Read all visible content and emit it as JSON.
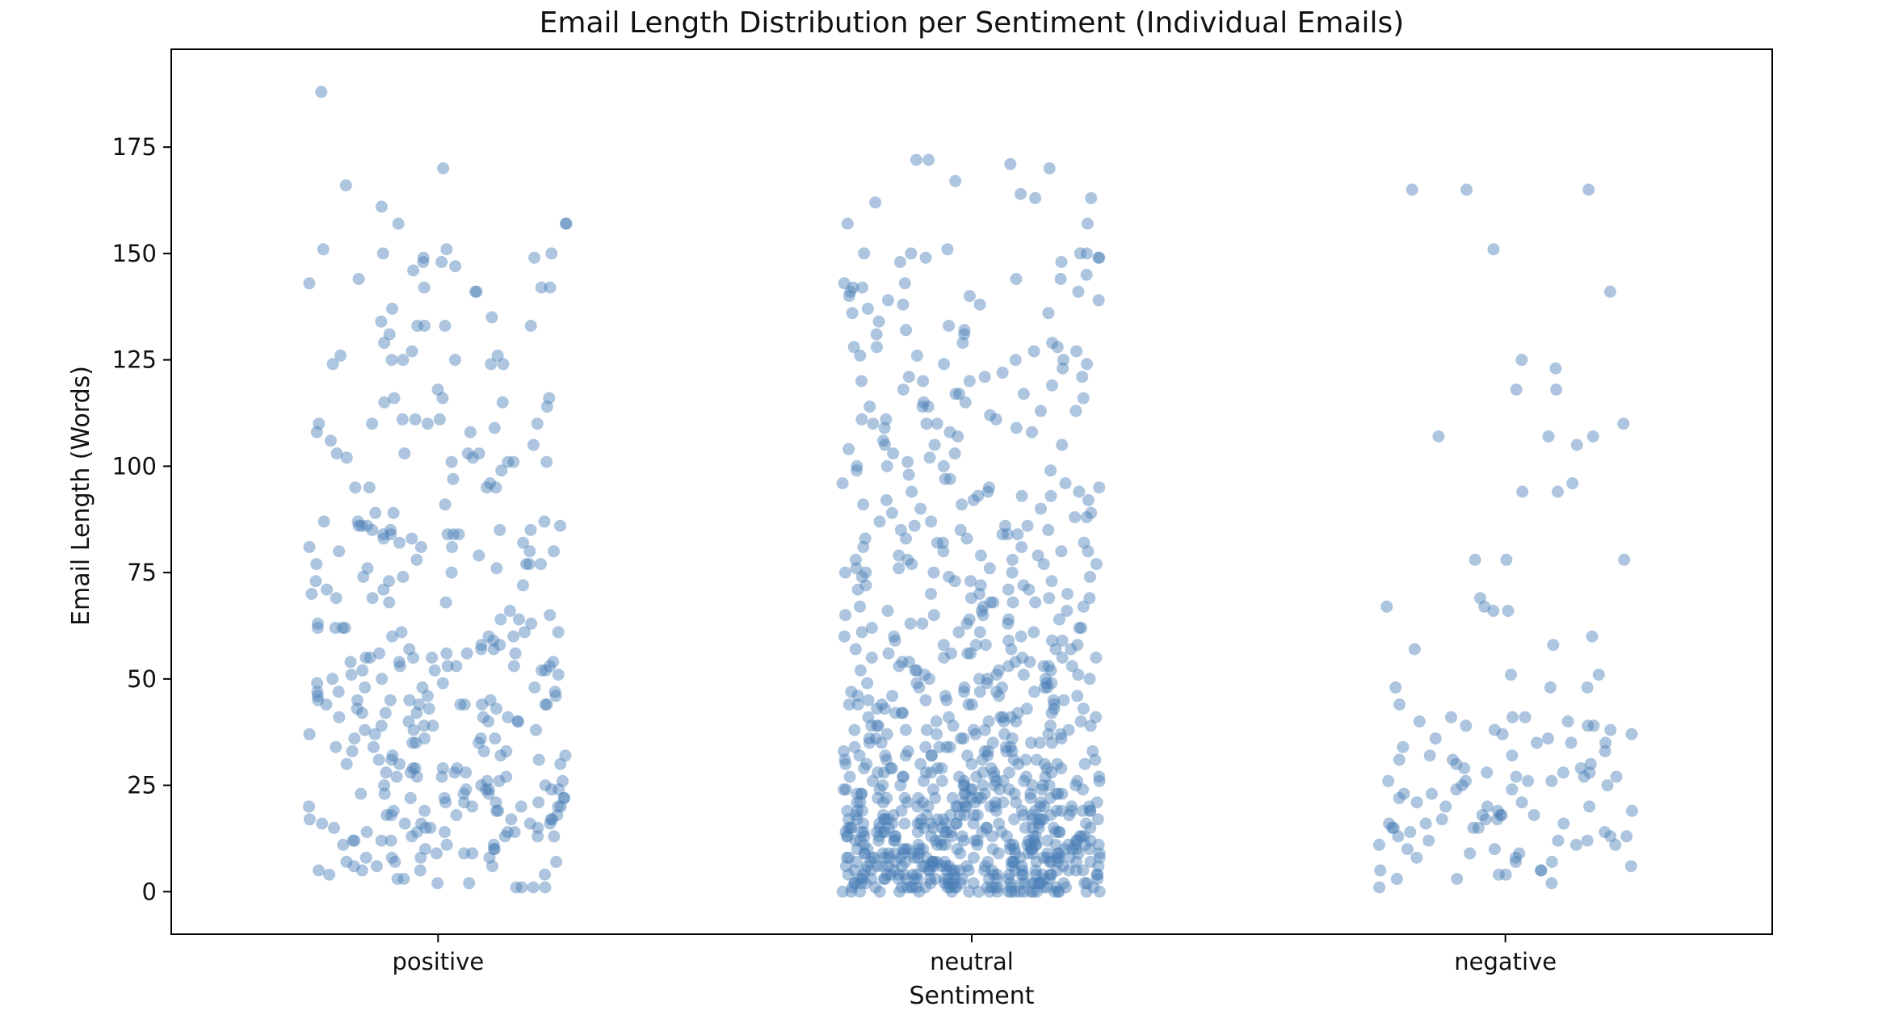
{
  "chart_data": {
    "type": "scatter",
    "subtype": "strip",
    "title": "Email Length Distribution per Sentiment (Individual Emails)",
    "xlabel": "Sentiment",
    "ylabel": "Email Length (Words)",
    "categories": [
      "positive",
      "neutral",
      "negative"
    ],
    "ylim": [
      -10,
      198
    ],
    "yticks": [
      0,
      25,
      50,
      75,
      100,
      125,
      150,
      175
    ],
    "grid": false,
    "legend": "none",
    "point_color": "#4a7fb5",
    "point_alpha": 0.45,
    "series": [
      {
        "category": "positive",
        "values": [
          188,
          170,
          166,
          161,
          157,
          157,
          157,
          151,
          151,
          150,
          150,
          149,
          149,
          148,
          148,
          147,
          146,
          144,
          143,
          142,
          142,
          142,
          141,
          141,
          137,
          135,
          134,
          133,
          133,
          133,
          133,
          131,
          129,
          127,
          126,
          126,
          125,
          125,
          125,
          124,
          124,
          124,
          118,
          116,
          116,
          116,
          115,
          115,
          114,
          111,
          111,
          111,
          110,
          110,
          110,
          110,
          109,
          108,
          108,
          106,
          105,
          103,
          103,
          103,
          103,
          102,
          102,
          101,
          101,
          101,
          101,
          99,
          97,
          96,
          95,
          95,
          95,
          95,
          91,
          89,
          89,
          87,
          87,
          87,
          86,
          86,
          86,
          86,
          85,
          85,
          85,
          85,
          84,
          84,
          84,
          84,
          84,
          83,
          83,
          82,
          82,
          81,
          81,
          81,
          80,
          80,
          80,
          79,
          78,
          77,
          77,
          77,
          77,
          76,
          76,
          75,
          74,
          74,
          73,
          73,
          72,
          71,
          71,
          70,
          69,
          69,
          68,
          68,
          66,
          65,
          64,
          64,
          63,
          63,
          62,
          62,
          62,
          62,
          61,
          61,
          61,
          60,
          60,
          60,
          59,
          58,
          58,
          57,
          57,
          57,
          56,
          56,
          56,
          56,
          55,
          55,
          55,
          55,
          54,
          54,
          54,
          53,
          53,
          53,
          53,
          53,
          52,
          52,
          52,
          52,
          51,
          51,
          50,
          50,
          49,
          49,
          48,
          48,
          48,
          47,
          47,
          47,
          46,
          46,
          46,
          45,
          45,
          45,
          45,
          45,
          44,
          44,
          44,
          44,
          44,
          44,
          44,
          43,
          43,
          43,
          42,
          42,
          42,
          41,
          41,
          41,
          40,
          40,
          40,
          40,
          39,
          39,
          39,
          38,
          38,
          38,
          37,
          37,
          36,
          36,
          36,
          36,
          35,
          35,
          35,
          34,
          34,
          33,
          33,
          33,
          32,
          32,
          32,
          31,
          31,
          31,
          30,
          30,
          30,
          29,
          29,
          29,
          29,
          28,
          28,
          28,
          28,
          27,
          27,
          27,
          27,
          26,
          26,
          26,
          25,
          25,
          25,
          24,
          24,
          24,
          24,
          24,
          23,
          23,
          23,
          23,
          22,
          22,
          22,
          22,
          21,
          21,
          21,
          21,
          20,
          20,
          20,
          20,
          20,
          19,
          19,
          19,
          19,
          18,
          18,
          18,
          18,
          17,
          17,
          17,
          17,
          16,
          16,
          16,
          16,
          16,
          15,
          15,
          15,
          15,
          14,
          14,
          14,
          14,
          14,
          13,
          13,
          13,
          13,
          12,
          12,
          12,
          12,
          11,
          11,
          11,
          10,
          10,
          10,
          9,
          9,
          9,
          8,
          8,
          8,
          8,
          7,
          7,
          7,
          6,
          6,
          6,
          5,
          5,
          5,
          4,
          4,
          3,
          3,
          2,
          2,
          1,
          1,
          1,
          1
        ]
      },
      {
        "category": "neutral",
        "values": [
          172,
          172,
          171,
          170,
          167,
          164,
          163,
          163,
          162,
          157,
          157,
          151,
          150,
          150,
          150,
          150,
          149,
          149,
          149,
          148,
          148,
          145,
          144,
          144,
          143,
          143,
          142,
          142,
          141,
          141,
          140,
          140,
          139,
          139,
          138,
          138,
          137,
          136,
          136,
          134,
          133,
          132,
          132,
          131,
          131,
          129,
          129,
          128,
          128,
          128,
          127,
          127,
          126,
          126,
          125,
          125,
          124,
          124,
          123,
          122,
          121,
          121,
          121,
          120,
          120,
          120,
          119,
          118,
          117,
          117,
          117,
          116,
          115,
          115,
          114,
          114,
          114,
          113,
          113,
          112,
          111,
          111,
          111,
          110,
          110,
          110,
          109,
          109,
          108,
          108,
          107,
          106,
          105,
          105,
          105,
          104,
          103,
          103,
          102,
          101,
          100,
          100,
          100,
          99,
          99,
          98,
          97,
          97,
          96,
          96,
          95,
          95,
          94,
          94,
          94,
          93,
          93,
          93,
          92,
          92,
          92,
          91,
          91,
          90,
          90,
          89,
          89,
          88,
          88,
          87,
          87,
          86,
          86,
          86,
          85,
          85,
          85,
          84,
          84,
          84,
          83,
          83,
          83,
          82,
          82,
          82,
          81,
          81,
          80,
          80,
          80,
          79,
          79,
          79,
          78,
          78,
          78,
          77,
          77,
          77,
          76,
          76,
          76,
          75,
          75,
          75,
          75,
          74,
          74,
          74,
          73,
          73,
          73,
          72,
          72,
          72,
          71,
          71,
          71,
          70,
          70,
          70,
          69,
          69,
          69,
          68,
          68,
          68,
          68,
          67,
          67,
          67,
          66,
          66,
          66,
          65,
          65,
          65,
          64,
          64,
          64,
          63,
          63,
          63,
          63,
          62,
          62,
          62,
          61,
          61,
          61,
          61,
          60,
          60,
          60,
          59,
          59,
          59,
          59,
          58,
          58,
          58,
          58,
          57,
          57,
          57,
          57,
          56,
          56,
          56,
          56,
          55,
          55,
          55,
          55,
          55,
          54,
          54,
          54,
          54,
          53,
          53,
          53,
          53,
          53,
          52,
          52,
          52,
          52,
          52,
          51,
          51,
          51,
          51,
          50,
          50,
          50,
          50,
          50,
          49,
          49,
          49,
          49,
          49,
          48,
          48,
          48,
          48,
          48,
          47,
          47,
          47,
          47,
          47,
          46,
          46,
          46,
          46,
          46,
          45,
          45,
          45,
          45,
          45,
          44,
          44,
          44,
          44,
          44,
          44,
          43,
          43,
          43,
          43,
          43,
          42,
          42,
          42,
          42,
          42,
          41,
          41,
          41,
          41,
          41,
          41,
          40,
          40,
          40,
          40,
          40,
          39,
          39,
          39,
          39,
          39,
          39,
          38,
          38,
          38,
          38,
          38,
          38,
          37,
          37,
          37,
          37,
          37,
          37,
          36,
          36,
          36,
          36,
          36,
          36,
          35,
          35,
          35,
          35,
          35,
          35,
          34,
          34,
          34,
          34,
          34,
          34,
          34,
          33,
          33,
          33,
          33,
          33,
          33,
          33,
          32,
          32,
          32,
          32,
          32,
          32,
          32,
          31,
          31,
          31,
          31,
          31,
          31,
          31,
          30,
          30,
          30,
          30,
          30,
          30,
          30,
          30,
          29,
          29,
          29,
          29,
          29,
          29,
          29,
          29,
          28,
          28,
          28,
          28,
          28,
          28,
          28,
          28,
          27,
          27,
          27,
          27,
          27,
          27,
          27,
          27,
          27,
          26,
          26,
          26,
          26,
          26,
          26,
          26,
          26,
          26,
          25,
          25,
          25,
          25,
          25,
          25,
          25,
          25,
          25,
          25,
          24,
          24,
          24,
          24,
          24,
          24,
          24,
          24,
          24,
          24,
          23,
          23,
          23,
          23,
          23,
          23,
          23,
          23,
          23,
          23,
          23,
          22,
          22,
          22,
          22,
          22,
          22,
          22,
          22,
          22,
          22,
          22,
          21,
          21,
          21,
          21,
          21,
          21,
          21,
          21,
          21,
          21,
          21,
          21,
          20,
          20,
          20,
          20,
          20,
          20,
          20,
          20,
          20,
          20,
          20,
          20,
          19,
          19,
          19,
          19,
          19,
          19,
          19,
          19,
          19,
          19,
          19,
          19,
          19,
          18,
          18,
          18,
          18,
          18,
          18,
          18,
          18,
          18,
          18,
          18,
          18,
          18,
          17,
          17,
          17,
          17,
          17,
          17,
          17,
          17,
          17,
          17,
          17,
          17,
          17,
          17,
          16,
          16,
          16,
          16,
          16,
          16,
          16,
          16,
          16,
          16,
          16,
          16,
          16,
          16,
          15,
          15,
          15,
          15,
          15,
          15,
          15,
          15,
          15,
          15,
          15,
          15,
          15,
          15,
          15,
          14,
          14,
          14,
          14,
          14,
          14,
          14,
          14,
          14,
          14,
          14,
          14,
          14,
          14,
          14,
          13,
          13,
          13,
          13,
          13,
          13,
          13,
          13,
          13,
          13,
          13,
          13,
          13,
          13,
          13,
          13,
          12,
          12,
          12,
          12,
          12,
          12,
          12,
          12,
          12,
          12,
          12,
          12,
          12,
          12,
          12,
          12,
          11,
          11,
          11,
          11,
          11,
          11,
          11,
          11,
          11,
          11,
          11,
          11,
          11,
          11,
          11,
          11,
          11,
          10,
          10,
          10,
          10,
          10,
          10,
          10,
          10,
          10,
          10,
          10,
          10,
          10,
          10,
          10,
          10,
          10,
          9,
          9,
          9,
          9,
          9,
          9,
          9,
          9,
          9,
          9,
          9,
          9,
          9,
          9,
          9,
          9,
          9,
          9,
          8,
          8,
          8,
          8,
          8,
          8,
          8,
          8,
          8,
          8,
          8,
          8,
          8,
          8,
          8,
          8,
          8,
          8,
          7,
          7,
          7,
          7,
          7,
          7,
          7,
          7,
          7,
          7,
          7,
          7,
          7,
          7,
          7,
          7,
          7,
          7,
          7,
          6,
          6,
          6,
          6,
          6,
          6,
          6,
          6,
          6,
          6,
          6,
          6,
          6,
          6,
          6,
          6,
          6,
          6,
          6,
          5,
          5,
          5,
          5,
          5,
          5,
          5,
          5,
          5,
          5,
          5,
          5,
          5,
          5,
          5,
          5,
          5,
          5,
          5,
          5,
          4,
          4,
          4,
          4,
          4,
          4,
          4,
          4,
          4,
          4,
          4,
          4,
          4,
          4,
          4,
          4,
          4,
          4,
          4,
          4,
          3,
          3,
          3,
          3,
          3,
          3,
          3,
          3,
          3,
          3,
          3,
          3,
          3,
          3,
          3,
          3,
          3,
          3,
          3,
          3,
          3,
          2,
          2,
          2,
          2,
          2,
          2,
          2,
          2,
          2,
          2,
          2,
          2,
          2,
          2,
          2,
          2,
          2,
          2,
          2,
          2,
          2,
          1,
          1,
          1,
          1,
          1,
          1,
          1,
          1,
          1,
          1,
          1,
          1,
          1,
          1,
          1,
          1,
          1,
          1,
          1,
          1,
          1,
          1,
          0,
          0,
          0,
          0,
          0,
          0,
          0,
          0,
          0,
          0,
          0,
          0,
          0,
          0,
          0,
          0,
          0,
          0,
          0,
          0,
          0,
          0,
          0,
          0
        ]
      },
      {
        "category": "negative",
        "values": [
          165,
          165,
          165,
          151,
          141,
          125,
          123,
          118,
          118,
          110,
          107,
          107,
          107,
          105,
          96,
          94,
          94,
          78,
          78,
          78,
          69,
          67,
          67,
          66,
          66,
          60,
          58,
          57,
          51,
          51,
          48,
          48,
          48,
          44,
          41,
          41,
          41,
          40,
          40,
          39,
          39,
          39,
          38,
          38,
          37,
          37,
          36,
          36,
          35,
          35,
          35,
          34,
          33,
          32,
          32,
          31,
          31,
          30,
          30,
          29,
          29,
          28,
          28,
          28,
          27,
          27,
          27,
          26,
          26,
          26,
          26,
          25,
          25,
          24,
          24,
          23,
          23,
          22,
          21,
          21,
          20,
          20,
          20,
          19,
          19,
          18,
          18,
          18,
          18,
          17,
          17,
          17,
          16,
          16,
          16,
          15,
          15,
          15,
          15,
          14,
          14,
          13,
          13,
          13,
          12,
          12,
          12,
          11,
          11,
          11,
          10,
          10,
          9,
          9,
          8,
          8,
          7,
          7,
          6,
          5,
          5,
          5,
          4,
          4,
          3,
          3,
          2,
          1
        ]
      }
    ]
  }
}
